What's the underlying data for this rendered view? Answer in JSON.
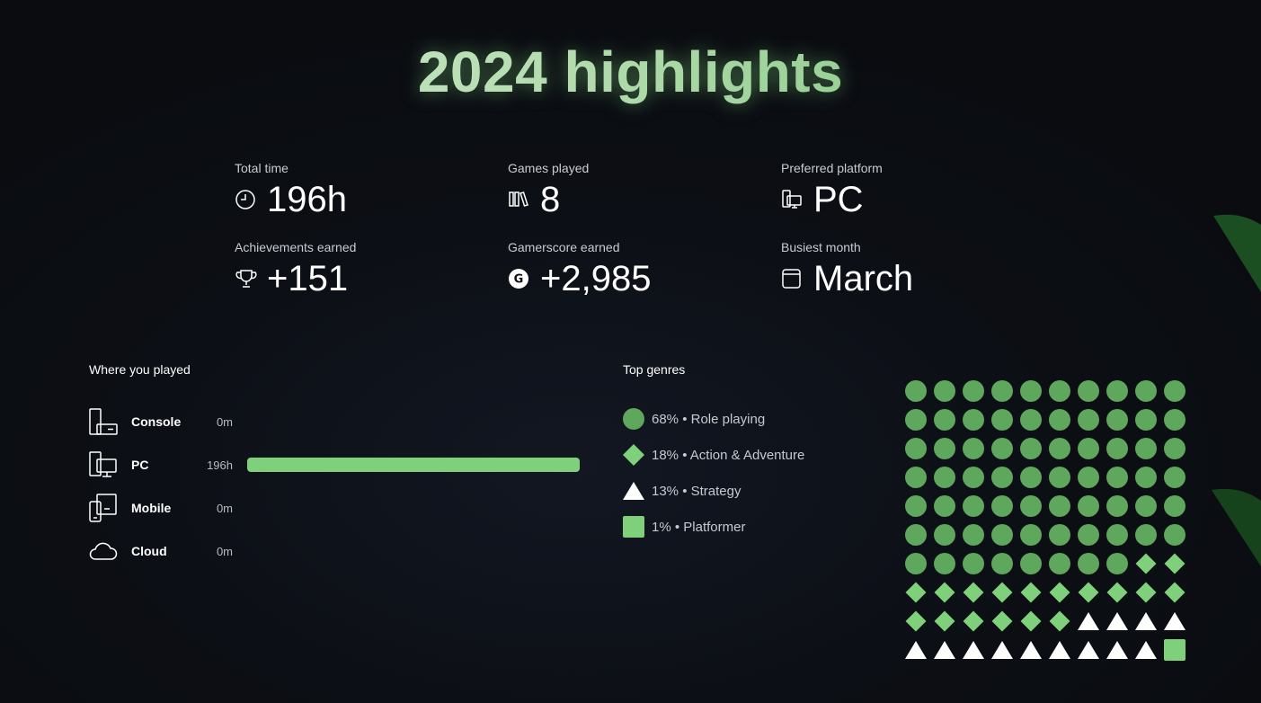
{
  "title": "2024 highlights",
  "stats": [
    {
      "label": "Total time",
      "value": "196h",
      "icon": "clock-icon"
    },
    {
      "label": "Games played",
      "value": "8",
      "icon": "library-icon"
    },
    {
      "label": "Preferred platform",
      "value": "PC",
      "icon": "pc-icon"
    },
    {
      "label": "Achievements earned",
      "value": "+151",
      "icon": "trophy-icon"
    },
    {
      "label": "Gamerscore earned",
      "value": "+2,985",
      "icon": "gamerscore-icon"
    },
    {
      "label": "Busiest month",
      "value": "March",
      "icon": "calendar-icon"
    }
  ],
  "where_you_played": {
    "title": "Where you played",
    "max_hours": 196,
    "platforms": [
      {
        "name": "Console",
        "time": "0m",
        "hours": 0,
        "icon": "console-icon"
      },
      {
        "name": "PC",
        "time": "196h",
        "hours": 196,
        "icon": "pc-icon"
      },
      {
        "name": "Mobile",
        "time": "0m",
        "hours": 0,
        "icon": "mobile-icon"
      },
      {
        "name": "Cloud",
        "time": "0m",
        "hours": 0,
        "icon": "cloud-icon"
      }
    ]
  },
  "top_genres": {
    "title": "Top genres",
    "genres": [
      {
        "label": "68% • Role playing",
        "percent": 68,
        "shape": "circle",
        "color": "#5fa75c"
      },
      {
        "label": "18% • Action & Adventure",
        "percent": 18,
        "shape": "diamond",
        "color": "#7fd07a"
      },
      {
        "label": "13% • Strategy",
        "percent": 13,
        "shape": "triangle",
        "color": "#ffffff"
      },
      {
        "label": "1% • Platformer",
        "percent": 1,
        "shape": "square",
        "color": "#7fd07a"
      }
    ]
  },
  "colors": {
    "accent": "#7fd07a",
    "dark_green": "#5fa75c",
    "background": "#0b0d12"
  }
}
